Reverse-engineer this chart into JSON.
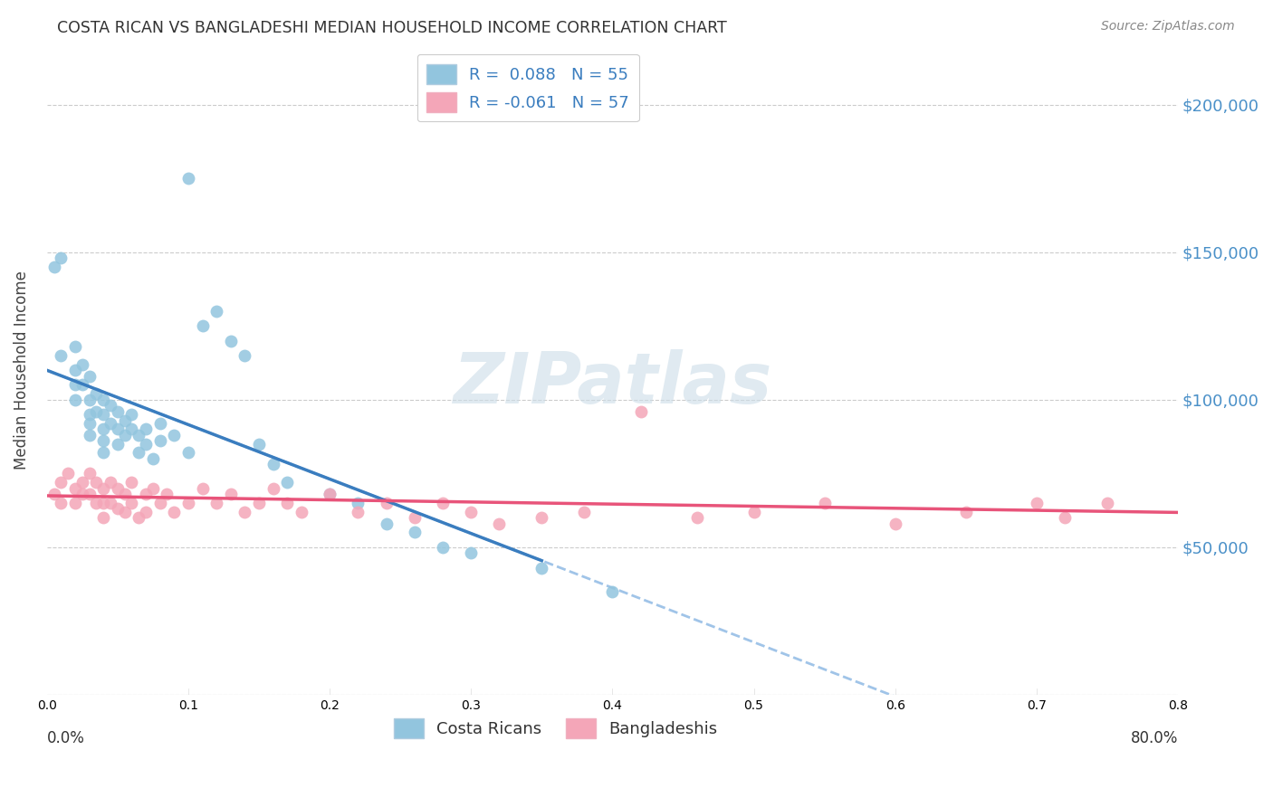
{
  "title": "COSTA RICAN VS BANGLADESHI MEDIAN HOUSEHOLD INCOME CORRELATION CHART",
  "source": "Source: ZipAtlas.com",
  "ylabel": "Median Household Income",
  "color_blue": "#92c5de",
  "color_pink": "#f4a6b8",
  "trend_blue_solid": "#3a7dbf",
  "trend_blue_dashed": "#a0c4e8",
  "trend_pink": "#e8547a",
  "ylim": [
    0,
    220000
  ],
  "xlim": [
    0.0,
    0.8
  ],
  "watermark": "ZIPatlas",
  "costa_rican_x": [
    0.005,
    0.01,
    0.01,
    0.02,
    0.02,
    0.02,
    0.02,
    0.025,
    0.025,
    0.03,
    0.03,
    0.03,
    0.03,
    0.03,
    0.035,
    0.035,
    0.04,
    0.04,
    0.04,
    0.04,
    0.04,
    0.045,
    0.045,
    0.05,
    0.05,
    0.05,
    0.055,
    0.055,
    0.06,
    0.06,
    0.065,
    0.065,
    0.07,
    0.07,
    0.075,
    0.08,
    0.08,
    0.09,
    0.1,
    0.1,
    0.11,
    0.12,
    0.13,
    0.14,
    0.15,
    0.16,
    0.17,
    0.2,
    0.22,
    0.24,
    0.26,
    0.28,
    0.3,
    0.35,
    0.4
  ],
  "costa_rican_y": [
    145000,
    148000,
    115000,
    118000,
    110000,
    105000,
    100000,
    112000,
    105000,
    108000,
    100000,
    95000,
    92000,
    88000,
    102000,
    96000,
    100000,
    95000,
    90000,
    86000,
    82000,
    98000,
    92000,
    96000,
    90000,
    85000,
    93000,
    88000,
    95000,
    90000,
    88000,
    82000,
    90000,
    85000,
    80000,
    92000,
    86000,
    88000,
    82000,
    175000,
    125000,
    130000,
    120000,
    115000,
    85000,
    78000,
    72000,
    68000,
    65000,
    58000,
    55000,
    50000,
    48000,
    43000,
    35000
  ],
  "bangladeshi_x": [
    0.005,
    0.01,
    0.01,
    0.015,
    0.02,
    0.02,
    0.025,
    0.025,
    0.03,
    0.03,
    0.035,
    0.035,
    0.04,
    0.04,
    0.04,
    0.045,
    0.045,
    0.05,
    0.05,
    0.055,
    0.055,
    0.06,
    0.06,
    0.065,
    0.07,
    0.07,
    0.075,
    0.08,
    0.085,
    0.09,
    0.1,
    0.11,
    0.12,
    0.13,
    0.14,
    0.15,
    0.16,
    0.17,
    0.18,
    0.2,
    0.22,
    0.24,
    0.26,
    0.28,
    0.3,
    0.32,
    0.35,
    0.38,
    0.42,
    0.46,
    0.5,
    0.55,
    0.6,
    0.65,
    0.7,
    0.72,
    0.75
  ],
  "bangladeshi_y": [
    68000,
    72000,
    65000,
    75000,
    70000,
    65000,
    72000,
    68000,
    75000,
    68000,
    72000,
    65000,
    70000,
    65000,
    60000,
    72000,
    65000,
    70000,
    63000,
    68000,
    62000,
    72000,
    65000,
    60000,
    68000,
    62000,
    70000,
    65000,
    68000,
    62000,
    65000,
    70000,
    65000,
    68000,
    62000,
    65000,
    70000,
    65000,
    62000,
    68000,
    62000,
    65000,
    60000,
    65000,
    62000,
    58000,
    60000,
    62000,
    96000,
    60000,
    62000,
    65000,
    58000,
    62000,
    65000,
    60000,
    65000
  ]
}
